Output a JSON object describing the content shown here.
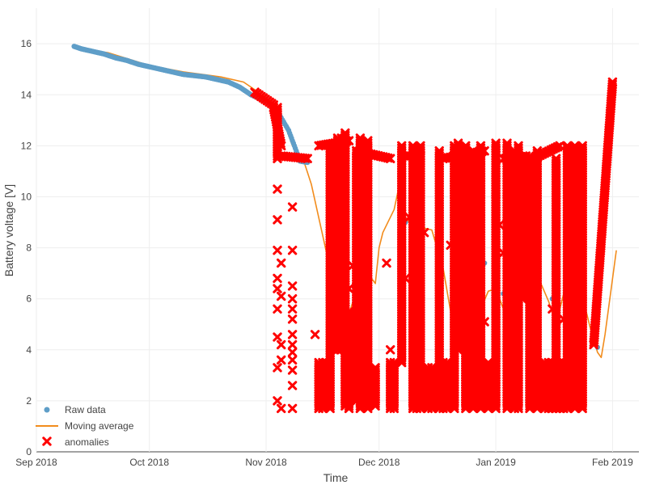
{
  "colors": {
    "raw": "#5f9ec8",
    "moving_average": "#f28c1c",
    "anomalies": "#ff0000",
    "grid": "#eeeeee",
    "zero_line": "#444444"
  },
  "chart_data": {
    "type": "scatter",
    "xlabel": "Time",
    "ylabel": "Battery voltage [V]",
    "xlim": [
      "2018-09-01",
      "2019-02-08"
    ],
    "ylim": [
      0,
      17.4
    ],
    "grid": true,
    "legend_position": "bottom-left",
    "x_ticks": [
      {
        "date": "2018-09-01",
        "label": "Sep 2018"
      },
      {
        "date": "2018-10-01",
        "label": "Oct 2018"
      },
      {
        "date": "2018-11-01",
        "label": "Nov 2018"
      },
      {
        "date": "2018-12-01",
        "label": "Dec 2018"
      },
      {
        "date": "2019-01-01",
        "label": "Jan 2019"
      },
      {
        "date": "2019-02-01",
        "label": "Feb 2019"
      }
    ],
    "y_ticks": [
      0,
      2,
      4,
      6,
      8,
      10,
      12,
      14,
      16
    ],
    "series": [
      {
        "name": "Raw data",
        "kind": "markers",
        "marker": "circle",
        "points": [
          [
            "2018-09-11",
            15.9
          ],
          [
            "2018-09-13",
            15.8
          ],
          [
            "2018-09-16",
            15.7
          ],
          [
            "2018-09-19",
            15.6
          ],
          [
            "2018-09-22",
            15.45
          ],
          [
            "2018-09-25",
            15.35
          ],
          [
            "2018-09-28",
            15.2
          ],
          [
            "2018-10-01",
            15.1
          ],
          [
            "2018-10-04",
            15.0
          ],
          [
            "2018-10-07",
            14.9
          ],
          [
            "2018-10-10",
            14.8
          ],
          [
            "2018-10-13",
            14.75
          ],
          [
            "2018-10-16",
            14.7
          ],
          [
            "2018-10-19",
            14.6
          ],
          [
            "2018-10-22",
            14.5
          ],
          [
            "2018-10-25",
            14.3
          ],
          [
            "2018-10-28",
            14.0
          ],
          [
            "2018-10-31",
            13.8
          ],
          [
            "2018-11-03",
            13.6
          ],
          [
            "2018-11-07",
            12.6
          ],
          [
            "2018-11-10",
            11.4
          ],
          [
            "2018-11-12",
            11.35
          ],
          [
            "2018-11-21",
            5.5
          ],
          [
            "2018-11-24",
            5.2
          ],
          [
            "2018-11-27",
            7.0
          ],
          [
            "2018-12-08",
            9.0
          ],
          [
            "2018-12-22",
            5.0
          ],
          [
            "2018-12-25",
            5.3
          ],
          [
            "2018-12-29",
            7.4
          ],
          [
            "2019-01-03",
            6.2
          ],
          [
            "2019-01-08",
            8.5
          ],
          [
            "2019-01-12",
            8.0
          ],
          [
            "2019-01-16",
            6.0
          ],
          [
            "2019-01-24",
            7.4
          ],
          [
            "2019-01-28",
            4.1
          ]
        ]
      },
      {
        "name": "Moving average",
        "kind": "line",
        "points": [
          [
            "2018-09-11",
            15.85
          ],
          [
            "2018-09-20",
            15.65
          ],
          [
            "2018-10-01",
            15.15
          ],
          [
            "2018-10-10",
            14.9
          ],
          [
            "2018-10-20",
            14.7
          ],
          [
            "2018-10-26",
            14.5
          ],
          [
            "2018-10-29",
            14.2
          ],
          [
            "2018-11-01",
            13.8
          ],
          [
            "2018-11-04",
            13.5
          ],
          [
            "2018-11-06",
            12.8
          ],
          [
            "2018-11-08",
            12.0
          ],
          [
            "2018-11-11",
            11.4
          ],
          [
            "2018-11-13",
            10.5
          ],
          [
            "2018-11-16",
            8.5
          ],
          [
            "2018-11-19",
            6.5
          ],
          [
            "2018-11-21",
            5.6
          ],
          [
            "2018-11-23",
            5.4
          ],
          [
            "2018-11-26",
            6.8
          ],
          [
            "2018-11-28",
            7.0
          ],
          [
            "2018-11-30",
            6.6
          ],
          [
            "2018-12-01",
            8.0
          ],
          [
            "2018-12-02",
            8.6
          ],
          [
            "2018-12-05",
            9.5
          ],
          [
            "2018-12-06",
            10.2
          ],
          [
            "2018-12-07",
            9.4
          ],
          [
            "2018-12-09",
            9.0
          ],
          [
            "2018-12-12",
            8.8
          ],
          [
            "2018-12-15",
            8.7
          ],
          [
            "2018-12-18",
            7.2
          ],
          [
            "2018-12-20",
            5.5
          ],
          [
            "2018-12-22",
            6.0
          ],
          [
            "2018-12-23",
            7.2
          ],
          [
            "2018-12-24",
            6.7
          ],
          [
            "2018-12-26",
            4.2
          ],
          [
            "2018-12-28",
            5.6
          ],
          [
            "2018-12-30",
            6.3
          ],
          [
            "2019-01-01",
            6.4
          ],
          [
            "2019-01-03",
            5.6
          ],
          [
            "2019-01-05",
            7.0
          ],
          [
            "2019-01-07",
            8.0
          ],
          [
            "2019-01-09",
            8.5
          ],
          [
            "2019-01-11",
            7.6
          ],
          [
            "2019-01-13",
            6.6
          ],
          [
            "2019-01-15",
            5.9
          ],
          [
            "2019-01-17",
            5.0
          ],
          [
            "2019-01-19",
            6.2
          ],
          [
            "2019-01-20",
            7.8
          ],
          [
            "2019-01-22",
            6.3
          ],
          [
            "2019-01-24",
            6.1
          ],
          [
            "2019-01-26",
            4.9
          ],
          [
            "2019-01-28",
            3.9
          ],
          [
            "2019-01-29",
            3.7
          ],
          [
            "2019-01-30",
            4.6
          ],
          [
            "2019-02-02",
            7.9
          ]
        ]
      },
      {
        "name": "anomalies",
        "kind": "markers",
        "marker": "x",
        "segments": [
          [
            [
              "2018-10-29",
              14.1
            ],
            [
              "2018-11-03",
              13.6
            ]
          ],
          [
            [
              "2018-11-03",
              13.5
            ],
            [
              "2018-11-05",
              12.0
            ]
          ],
          [
            [
              "2018-11-05",
              11.6
            ],
            [
              "2018-11-12",
              11.5
            ]
          ],
          [
            [
              "2018-11-15",
              12.0
            ],
            [
              "2018-11-23",
              12.2
            ]
          ],
          [
            [
              "2018-11-25",
              11.8
            ],
            [
              "2018-12-04",
              11.5
            ]
          ],
          [
            [
              "2018-12-08",
              11.6
            ],
            [
              "2018-12-12",
              11.6
            ]
          ],
          [
            [
              "2018-12-18",
              11.5
            ],
            [
              "2018-12-29",
              11.8
            ]
          ],
          [
            [
              "2019-01-03",
              11.5
            ],
            [
              "2019-01-09",
              11.6
            ]
          ],
          [
            [
              "2019-01-11",
              11.5
            ],
            [
              "2019-01-18",
              12.0
            ]
          ],
          [
            [
              "2019-01-27",
              4.2
            ],
            [
              "2019-02-01",
              14.5
            ]
          ]
        ],
        "vertical_bars": [
          [
            "2018-11-04",
            11.5,
            13.5
          ],
          [
            "2018-11-15",
            1.7,
            3.5
          ],
          [
            "2018-11-16",
            1.7,
            3.5
          ],
          [
            "2018-11-17",
            1.8,
            3.5
          ],
          [
            "2018-11-18",
            1.7,
            12.0
          ],
          [
            "2018-11-19",
            5.6,
            6.8
          ],
          [
            "2018-11-20",
            4.0,
            12.3
          ],
          [
            "2018-11-21",
            4.0,
            12.3
          ],
          [
            "2018-11-22",
            1.8,
            12.5
          ],
          [
            "2018-11-23",
            1.7,
            5.5
          ],
          [
            "2018-11-25",
            2.0,
            11.8
          ],
          [
            "2018-11-26",
            1.7,
            12.3
          ],
          [
            "2018-11-28",
            1.7,
            12.2
          ],
          [
            "2018-11-30",
            1.8,
            3.3
          ],
          [
            "2018-12-04",
            1.7,
            3.5
          ],
          [
            "2018-12-05",
            1.7,
            3.5
          ],
          [
            "2018-12-07",
            3.5,
            12.0
          ],
          [
            "2018-12-10",
            1.7,
            12.0
          ],
          [
            "2018-12-11",
            1.7,
            3.5
          ],
          [
            "2018-12-12",
            1.7,
            12.0
          ],
          [
            "2018-12-14",
            1.7,
            3.3
          ],
          [
            "2018-12-15",
            1.7,
            3.3
          ],
          [
            "2018-12-17",
            1.7,
            11.8
          ],
          [
            "2018-12-18",
            1.7,
            3.5
          ],
          [
            "2018-12-19",
            1.7,
            3.5
          ],
          [
            "2018-12-21",
            1.7,
            12.0
          ],
          [
            "2018-12-22",
            4.0,
            12.1
          ],
          [
            "2018-12-24",
            1.7,
            12.0
          ],
          [
            "2018-12-26",
            1.7,
            11.8
          ],
          [
            "2018-12-28",
            1.7,
            12.0
          ],
          [
            "2018-12-30",
            1.7,
            3.5
          ],
          [
            "2019-01-01",
            1.7,
            12.1
          ],
          [
            "2019-01-04",
            1.7,
            12.1
          ],
          [
            "2019-01-06",
            1.7,
            11.8
          ],
          [
            "2019-01-07",
            1.7,
            12.0
          ],
          [
            "2019-01-08",
            6.0,
            11.5
          ],
          [
            "2019-01-10",
            1.7,
            11.6
          ],
          [
            "2019-01-12",
            1.7,
            11.8
          ],
          [
            "2019-01-14",
            1.7,
            3.5
          ],
          [
            "2019-01-15",
            1.7,
            3.5
          ],
          [
            "2019-01-16",
            1.7,
            3.5
          ],
          [
            "2019-01-17",
            1.7,
            11.5
          ],
          [
            "2019-01-18",
            1.7,
            3.5
          ],
          [
            "2019-01-19",
            1.7,
            3.5
          ],
          [
            "2019-01-20",
            1.7,
            12.0
          ],
          [
            "2019-01-22",
            1.7,
            12.0
          ],
          [
            "2019-01-24",
            1.7,
            12.0
          ]
        ],
        "points": [
          [
            "2018-11-04",
            10.3
          ],
          [
            "2018-11-04",
            9.1
          ],
          [
            "2018-11-04",
            7.9
          ],
          [
            "2018-11-04",
            6.8
          ],
          [
            "2018-11-04",
            6.4
          ],
          [
            "2018-11-04",
            5.6
          ],
          [
            "2018-11-04",
            4.5
          ],
          [
            "2018-11-04",
            3.3
          ],
          [
            "2018-11-04",
            2.0
          ],
          [
            "2018-11-05",
            7.4
          ],
          [
            "2018-11-05",
            6.1
          ],
          [
            "2018-11-05",
            4.2
          ],
          [
            "2018-11-05",
            3.6
          ],
          [
            "2018-11-05",
            1.7
          ],
          [
            "2018-11-08",
            9.6
          ],
          [
            "2018-11-08",
            7.9
          ],
          [
            "2018-11-08",
            6.5
          ],
          [
            "2018-11-08",
            6.0
          ],
          [
            "2018-11-08",
            5.6
          ],
          [
            "2018-11-08",
            5.2
          ],
          [
            "2018-11-08",
            4.6
          ],
          [
            "2018-11-08",
            4.2
          ],
          [
            "2018-11-08",
            3.9
          ],
          [
            "2018-11-08",
            3.6
          ],
          [
            "2018-11-08",
            3.2
          ],
          [
            "2018-11-08",
            2.6
          ],
          [
            "2018-11-08",
            1.7
          ],
          [
            "2018-11-14",
            4.6
          ],
          [
            "2018-11-19",
            4.0
          ],
          [
            "2018-11-23",
            6.4
          ],
          [
            "2018-11-24",
            7.3
          ],
          [
            "2018-11-27",
            7.2
          ],
          [
            "2018-12-03",
            7.4
          ],
          [
            "2018-12-04",
            4.0
          ],
          [
            "2018-12-08",
            6.8
          ],
          [
            "2018-12-09",
            9.2
          ],
          [
            "2018-12-13",
            8.6
          ],
          [
            "2018-12-20",
            8.1
          ],
          [
            "2018-12-23",
            8.2
          ],
          [
            "2018-12-24",
            7.4
          ],
          [
            "2018-12-26",
            6.4
          ],
          [
            "2018-12-27",
            10.0
          ],
          [
            "2019-01-02",
            8.9
          ],
          [
            "2019-01-03",
            7.8
          ],
          [
            "2019-01-06",
            5.7
          ],
          [
            "2019-01-10",
            6.2
          ],
          [
            "2019-01-16",
            5.6
          ],
          [
            "2019-01-19",
            5.2
          ],
          [
            "2019-01-22",
            6.6
          ],
          [
            "2018-12-22",
            4.0
          ],
          [
            "2018-12-25",
            4.5
          ],
          [
            "2018-12-26",
            4.9
          ],
          [
            "2018-12-29",
            5.1
          ],
          [
            "2019-01-13",
            3.2
          ],
          [
            "2019-01-20",
            3.7
          ]
        ]
      }
    ]
  }
}
